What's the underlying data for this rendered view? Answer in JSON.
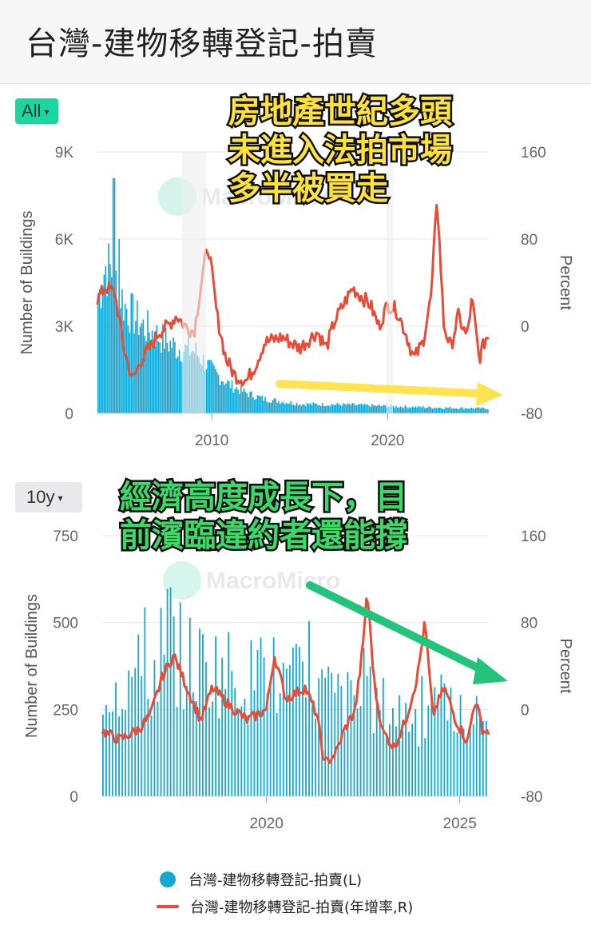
{
  "header": {
    "title": "台灣-建物移轉登記-拍賣"
  },
  "controls": {
    "range_all": "All",
    "range_10y": "10y",
    "caret": "▾"
  },
  "annotations": {
    "top_lines": [
      "房地產世紀多頭",
      "未進入法拍市場",
      "多半被買走"
    ],
    "bottom_lines": [
      "經濟高度成長下，目",
      "前濱臨違約者還能撐"
    ]
  },
  "watermark": "MacroMicro",
  "legend": {
    "left_series": "台灣-建物移轉登記-拍賣(L)",
    "right_series": "台灣-建物移轉登記-拍賣(年增率,R)"
  },
  "colors": {
    "bars": "#14a9d4",
    "line": "#e84c36",
    "yellow_arrow": "#ffe34f",
    "green_arrow": "#22c37a"
  },
  "chart_data": [
    {
      "type": "bar+line",
      "range": "All",
      "x_start": 2003.5,
      "x_end": 2025.75,
      "x_ticks": [
        "2010",
        "2020"
      ],
      "ylabel_left": "Number of Buildings",
      "ylabel_right": "Percent",
      "y_left_ticks": [
        "9K",
        "6K",
        "3K",
        "0"
      ],
      "y_right_ticks": [
        "160",
        "80",
        "0",
        "-80"
      ],
      "ylim_left": [
        0,
        9000
      ],
      "ylim_right": [
        -80,
        160
      ],
      "grid": true,
      "bars_anchor": [
        [
          2003.5,
          4000
        ],
        [
          2003.9,
          5200
        ],
        [
          2004.3,
          5000
        ],
        [
          2004.6,
          4600
        ],
        [
          2005,
          3800
        ],
        [
          2006,
          3100
        ],
        [
          2007,
          2700
        ],
        [
          2008,
          2300
        ],
        [
          2009,
          2200
        ],
        [
          2010,
          1500
        ],
        [
          2011,
          1000
        ],
        [
          2012,
          700
        ],
        [
          2013,
          500
        ],
        [
          2015,
          330
        ],
        [
          2018,
          300
        ],
        [
          2020,
          250
        ],
        [
          2023,
          200
        ],
        [
          2025.75,
          170
        ]
      ],
      "bar_spikes": [
        [
          2004.4,
          8100
        ],
        [
          2004.7,
          6000
        ]
      ],
      "line_anchor": [
        [
          2003.5,
          25
        ],
        [
          2004,
          36
        ],
        [
          2004.5,
          30
        ],
        [
          2005,
          -20
        ],
        [
          2005.5,
          -50
        ],
        [
          2006,
          -30
        ],
        [
          2006.5,
          -20
        ],
        [
          2007,
          -5
        ],
        [
          2007.5,
          0
        ],
        [
          2008,
          10
        ],
        [
          2008.5,
          0
        ],
        [
          2009,
          -5
        ],
        [
          2009.5,
          50
        ],
        [
          2009.8,
          75
        ],
        [
          2010.3,
          10
        ],
        [
          2010.8,
          -30
        ],
        [
          2011.3,
          -45
        ],
        [
          2012,
          -50
        ],
        [
          2012.5,
          -35
        ],
        [
          2013,
          -15
        ],
        [
          2014,
          -10
        ],
        [
          2015,
          -20
        ],
        [
          2016,
          -5
        ],
        [
          2016.5,
          -20
        ],
        [
          2017,
          5
        ],
        [
          2018,
          35
        ],
        [
          2019,
          20
        ],
        [
          2019.5,
          0
        ],
        [
          2020,
          20
        ],
        [
          2020.5,
          15
        ],
        [
          2021,
          -5
        ],
        [
          2021.5,
          -30
        ],
        [
          2022,
          -15
        ],
        [
          2022.5,
          30
        ],
        [
          2022.8,
          120
        ],
        [
          2023.2,
          0
        ],
        [
          2023.6,
          -20
        ],
        [
          2024,
          10
        ],
        [
          2024.5,
          -10
        ],
        [
          2024.8,
          25
        ],
        [
          2025.2,
          -30
        ],
        [
          2025.6,
          -10
        ]
      ]
    },
    {
      "type": "bar+line",
      "range": "10y",
      "x_start": 2015.75,
      "x_end": 2025.75,
      "x_ticks": [
        "2020",
        "2025"
      ],
      "ylabel_left": "Number of Buildings",
      "ylabel_right": "Percent",
      "y_left_ticks": [
        "750",
        "500",
        "250",
        "0"
      ],
      "y_right_ticks": [
        "160",
        "80",
        "0",
        "-80"
      ],
      "ylim_left": [
        0,
        750
      ],
      "ylim_right": [
        -80,
        160
      ],
      "grid": true,
      "bar_base": [
        [
          2015.75,
          360
        ],
        [
          2017,
          390
        ],
        [
          2018,
          430
        ],
        [
          2019,
          400
        ],
        [
          2020,
          350
        ],
        [
          2021,
          360
        ],
        [
          2022,
          300
        ],
        [
          2023,
          280
        ],
        [
          2024,
          250
        ],
        [
          2025.75,
          220
        ]
      ],
      "line_anchor": [
        [
          2015.75,
          -20
        ],
        [
          2016.2,
          -28
        ],
        [
          2016.7,
          -18
        ],
        [
          2017,
          -5
        ],
        [
          2017.3,
          30
        ],
        [
          2017.6,
          50
        ],
        [
          2018,
          15
        ],
        [
          2018.3,
          -10
        ],
        [
          2018.6,
          20
        ],
        [
          2019,
          5
        ],
        [
          2019.5,
          -10
        ],
        [
          2020,
          0
        ],
        [
          2020.2,
          50
        ],
        [
          2020.5,
          10
        ],
        [
          2021,
          20
        ],
        [
          2021.3,
          -5
        ],
        [
          2021.5,
          -50
        ],
        [
          2021.8,
          -40
        ],
        [
          2022,
          -20
        ],
        [
          2022.3,
          0
        ],
        [
          2022.5,
          60
        ],
        [
          2022.6,
          110
        ],
        [
          2022.8,
          20
        ],
        [
          2023,
          -20
        ],
        [
          2023.3,
          -35
        ],
        [
          2023.6,
          -10
        ],
        [
          2023.9,
          30
        ],
        [
          2024.1,
          80
        ],
        [
          2024.3,
          -5
        ],
        [
          2024.6,
          20
        ],
        [
          2024.9,
          -10
        ],
        [
          2025.2,
          -30
        ],
        [
          2025.4,
          10
        ],
        [
          2025.6,
          -20
        ]
      ]
    }
  ]
}
